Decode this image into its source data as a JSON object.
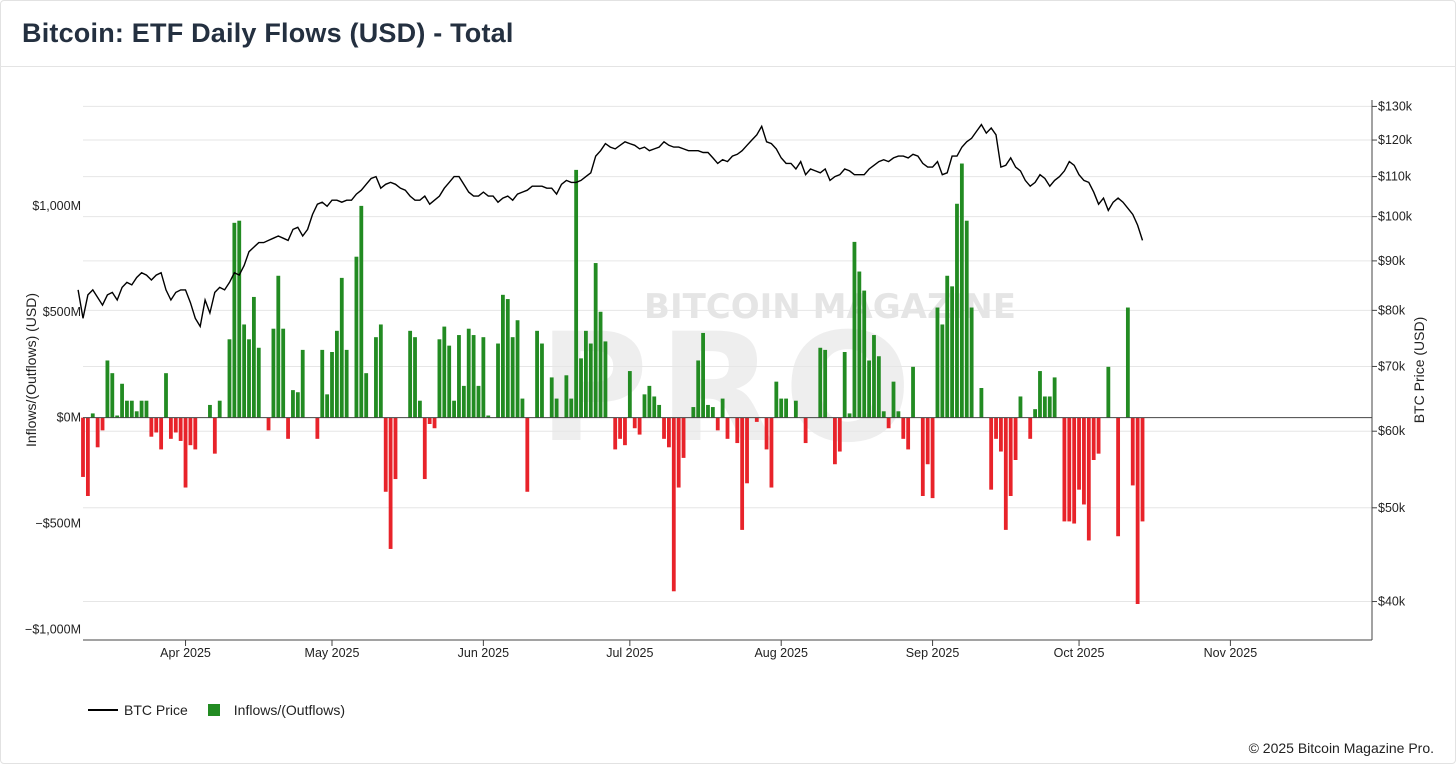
{
  "header": {
    "title": "Bitcoin: ETF Daily Flows (USD) - Total"
  },
  "watermark": {
    "line1": "BITCOIN MAGAZINE",
    "line2": "PRO"
  },
  "legend": {
    "price_label": "BTC Price",
    "flows_label": "Inflows/(Outflows)"
  },
  "footer": {
    "copyright": "© 2025 Bitcoin Magazine Pro."
  },
  "chart_data": {
    "type": "bar",
    "title": "Bitcoin: ETF Daily Flows (USD) - Total",
    "ylabel": "Inflows/(Outflows) (USD)",
    "y2label": "BTC Price (USD)",
    "ylim": [
      -1050,
      1500
    ],
    "y_unit": "USD millions",
    "y_ticks": [
      {
        "value": 1000,
        "label": "$1,000M"
      },
      {
        "value": 500,
        "label": "$500M"
      },
      {
        "value": 0,
        "label": "$0M"
      },
      {
        "value": -500,
        "label": "−$500M"
      },
      {
        "value": -1000,
        "label": "−$1,000M"
      }
    ],
    "y2_scale": "log",
    "y2lim": [
      36500,
      132000
    ],
    "y2_ticks": [
      {
        "value": 130000,
        "label": "$130k"
      },
      {
        "value": 120000,
        "label": "$120k"
      },
      {
        "value": 110000,
        "label": "$110k"
      },
      {
        "value": 100000,
        "label": "$100k"
      },
      {
        "value": 90000,
        "label": "$90k"
      },
      {
        "value": 80000,
        "label": "$80k"
      },
      {
        "value": 70000,
        "label": "$70k"
      },
      {
        "value": 60000,
        "label": "$60k"
      },
      {
        "value": 50000,
        "label": "$50k"
      },
      {
        "value": 40000,
        "label": "$40k"
      }
    ],
    "x_range": [
      "2025-03-11",
      "2025-11-30"
    ],
    "x_ticks": [
      {
        "date": "2025-04-01",
        "label": "Apr 2025"
      },
      {
        "date": "2025-05-01",
        "label": "May 2025"
      },
      {
        "date": "2025-06-01",
        "label": "Jun 2025"
      },
      {
        "date": "2025-07-01",
        "label": "Jul 2025"
      },
      {
        "date": "2025-08-01",
        "label": "Aug 2025"
      },
      {
        "date": "2025-09-01",
        "label": "Sep 2025"
      },
      {
        "date": "2025-10-01",
        "label": "Oct 2025"
      },
      {
        "date": "2025-11-01",
        "label": "Nov 2025"
      }
    ],
    "grid": true,
    "legend_position": "bottom-left",
    "colors": {
      "inflow": "#228b22",
      "outflow": "#e8232a",
      "price": "#000000"
    },
    "series": [
      {
        "name": "Inflows/(Outflows)",
        "kind": "bar",
        "start_date": "2025-03-11",
        "values": [
          -280,
          -370,
          20,
          -140,
          -60,
          270,
          210,
          10,
          160,
          80,
          80,
          30,
          80,
          80,
          -90,
          -70,
          -150,
          210,
          -100,
          -70,
          -110,
          -330,
          -130,
          -150,
          0,
          0,
          60,
          -170,
          80,
          0,
          370,
          920,
          930,
          440,
          370,
          570,
          330,
          0,
          -60,
          420,
          670,
          420,
          -100,
          130,
          120,
          320,
          0,
          0,
          -100,
          320,
          110,
          310,
          410,
          660,
          320,
          0,
          760,
          1000,
          210,
          0,
          380,
          440,
          -350,
          -620,
          -290,
          0,
          0,
          410,
          380,
          80,
          -290,
          -30,
          -50,
          370,
          430,
          340,
          80,
          390,
          150,
          420,
          390,
          150,
          380,
          10,
          0,
          350,
          580,
          560,
          380,
          460,
          90,
          -350,
          0,
          410,
          350,
          0,
          190,
          90,
          0,
          200,
          90,
          1170,
          280,
          410,
          350,
          730,
          500,
          360,
          0,
          -150,
          -100,
          -130,
          220,
          -50,
          -80,
          110,
          150,
          100,
          60,
          -100,
          -140,
          -820,
          -330,
          -190,
          0,
          50,
          270,
          400,
          60,
          50,
          -60,
          90,
          -100,
          0,
          -120,
          -530,
          -310,
          0,
          -20,
          0,
          -150,
          -330,
          170,
          90,
          90,
          0,
          80,
          0,
          -120,
          0,
          0,
          330,
          320,
          0,
          -220,
          -160,
          310,
          20,
          830,
          690,
          600,
          270,
          390,
          290,
          30,
          -50,
          170,
          30,
          -100,
          -150,
          240,
          0,
          -370,
          -220,
          -380,
          520,
          440,
          670,
          620,
          1010,
          1200,
          930,
          520,
          0,
          140,
          0,
          -340,
          -100,
          -160,
          -530,
          -370,
          -200,
          100,
          0,
          -100,
          40,
          220,
          100,
          100,
          190,
          0,
          -490,
          -490,
          -500,
          -340,
          -410,
          -580,
          -200,
          -170,
          0,
          240,
          0,
          -560,
          0,
          520,
          -320,
          -880,
          -490
        ]
      },
      {
        "name": "BTC Price",
        "kind": "line",
        "start_date": "2025-03-10",
        "values": [
          84000,
          78500,
          83000,
          84000,
          82500,
          81000,
          83000,
          83500,
          82000,
          84500,
          85500,
          85000,
          86500,
          87500,
          87000,
          86000,
          87000,
          87500,
          84000,
          82000,
          83500,
          84000,
          84000,
          81500,
          78500,
          77000,
          82000,
          79500,
          83500,
          84500,
          84000,
          85500,
          87500,
          87000,
          89000,
          92000,
          93000,
          94000,
          94000,
          94500,
          95000,
          95500,
          95000,
          94500,
          97000,
          97500,
          95500,
          97000,
          100500,
          103000,
          103500,
          102500,
          104000,
          104000,
          103500,
          104000,
          104000,
          105500,
          106500,
          108000,
          109500,
          110000,
          107000,
          108000,
          108500,
          108000,
          107000,
          106500,
          105000,
          104000,
          104000,
          105000,
          103000,
          104000,
          105000,
          107000,
          108500,
          110000,
          110000,
          108000,
          106000,
          105000,
          105000,
          106000,
          105000,
          105000,
          103500,
          104500,
          105000,
          104000,
          105500,
          106000,
          106500,
          107500,
          107500,
          107500,
          107000,
          107000,
          105500,
          108000,
          109000,
          108500,
          108500,
          109000,
          110000,
          111000,
          115500,
          117000,
          119000,
          118000,
          117500,
          118500,
          119500,
          119000,
          118500,
          117500,
          118000,
          117000,
          117500,
          118000,
          119500,
          118500,
          118000,
          118000,
          117500,
          117000,
          117000,
          117000,
          116500,
          116500,
          115000,
          113500,
          114500,
          114000,
          115500,
          116000,
          117000,
          118500,
          120000,
          121500,
          124000,
          119500,
          119000,
          117500,
          115000,
          113500,
          113500,
          112000,
          114000,
          110500,
          112000,
          111500,
          111000,
          112000,
          109000,
          110000,
          110500,
          112000,
          111500,
          110500,
          110500,
          110500,
          112000,
          113000,
          114000,
          114500,
          114000,
          115000,
          115500,
          115500,
          115000,
          116000,
          115500,
          113500,
          112500,
          112500,
          114000,
          110500,
          111000,
          115500,
          115500,
          118000,
          119500,
          120500,
          122500,
          124500,
          122000,
          123500,
          121500,
          112500,
          113000,
          115000,
          112500,
          111500,
          109000,
          107500,
          108500,
          110500,
          109500,
          107500,
          109000,
          110000,
          111500,
          114000,
          113000,
          110500,
          109000,
          108500,
          106000,
          103000,
          104500,
          101500,
          103500,
          104500,
          103500,
          102000,
          100500,
          98000,
          94500
        ]
      }
    ]
  }
}
